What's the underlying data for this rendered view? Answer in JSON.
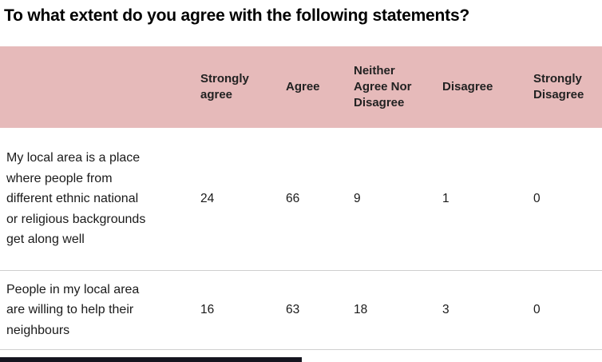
{
  "title": "To what extent do you agree with the following statements?",
  "colors": {
    "header_bg": "#e6baba",
    "row_divider": "#cfcfcf",
    "footer_bar": "#15151f"
  },
  "chart_data": {
    "type": "table",
    "title": "To what extent do you agree with the following statements?",
    "columns": [
      "Strongly agree",
      "Agree",
      "Neither Agree Nor Disagree",
      "Disagree",
      "Strongly Disagree"
    ],
    "rows": [
      {
        "label": "My local area is a place where people from different ethnic national or religious backgrounds get along well",
        "values": [
          24,
          66,
          9,
          1,
          0
        ]
      },
      {
        "label": "People in my local area are willing to help their neighbours",
        "values": [
          16,
          63,
          18,
          3,
          0
        ]
      }
    ],
    "layout": {
      "header_background": "#e6baba",
      "grid": "horizontal-dividers",
      "values_are": "percent-agreement-counts"
    }
  }
}
